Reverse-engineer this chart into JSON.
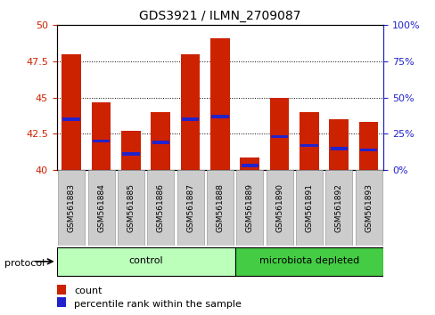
{
  "title": "GDS3921 / ILMN_2709087",
  "samples": [
    "GSM561883",
    "GSM561884",
    "GSM561885",
    "GSM561886",
    "GSM561887",
    "GSM561888",
    "GSM561889",
    "GSM561890",
    "GSM561891",
    "GSM561892",
    "GSM561893"
  ],
  "count_values": [
    48.0,
    44.7,
    42.7,
    44.0,
    48.0,
    49.1,
    40.9,
    45.0,
    44.0,
    43.5,
    43.3
  ],
  "percentile_values": [
    43.5,
    42.0,
    41.1,
    41.9,
    43.5,
    43.7,
    40.3,
    42.3,
    41.7,
    41.5,
    41.4
  ],
  "ylim_left": [
    40,
    50
  ],
  "ylim_right": [
    0,
    100
  ],
  "yticks_left": [
    40,
    42.5,
    45,
    47.5,
    50
  ],
  "yticks_right": [
    0,
    25,
    50,
    75,
    100
  ],
  "bar_color": "#cc2200",
  "percentile_color": "#2222cc",
  "baseline": 40,
  "groups": [
    {
      "label": "control",
      "start": 0,
      "end": 5,
      "color": "#bbffbb"
    },
    {
      "label": "microbiota depleted",
      "start": 6,
      "end": 10,
      "color": "#44cc44"
    }
  ],
  "protocol_label": "protocol",
  "legend_items": [
    {
      "label": "count",
      "color": "#cc2200"
    },
    {
      "label": "percentile rank within the sample",
      "color": "#2222cc"
    }
  ],
  "bar_width": 0.65,
  "background_color": "#ffffff",
  "tick_color_left": "#cc2200",
  "tick_color_right": "#2222cc",
  "label_bg_color": "#cccccc",
  "label_edge_color": "#999999"
}
